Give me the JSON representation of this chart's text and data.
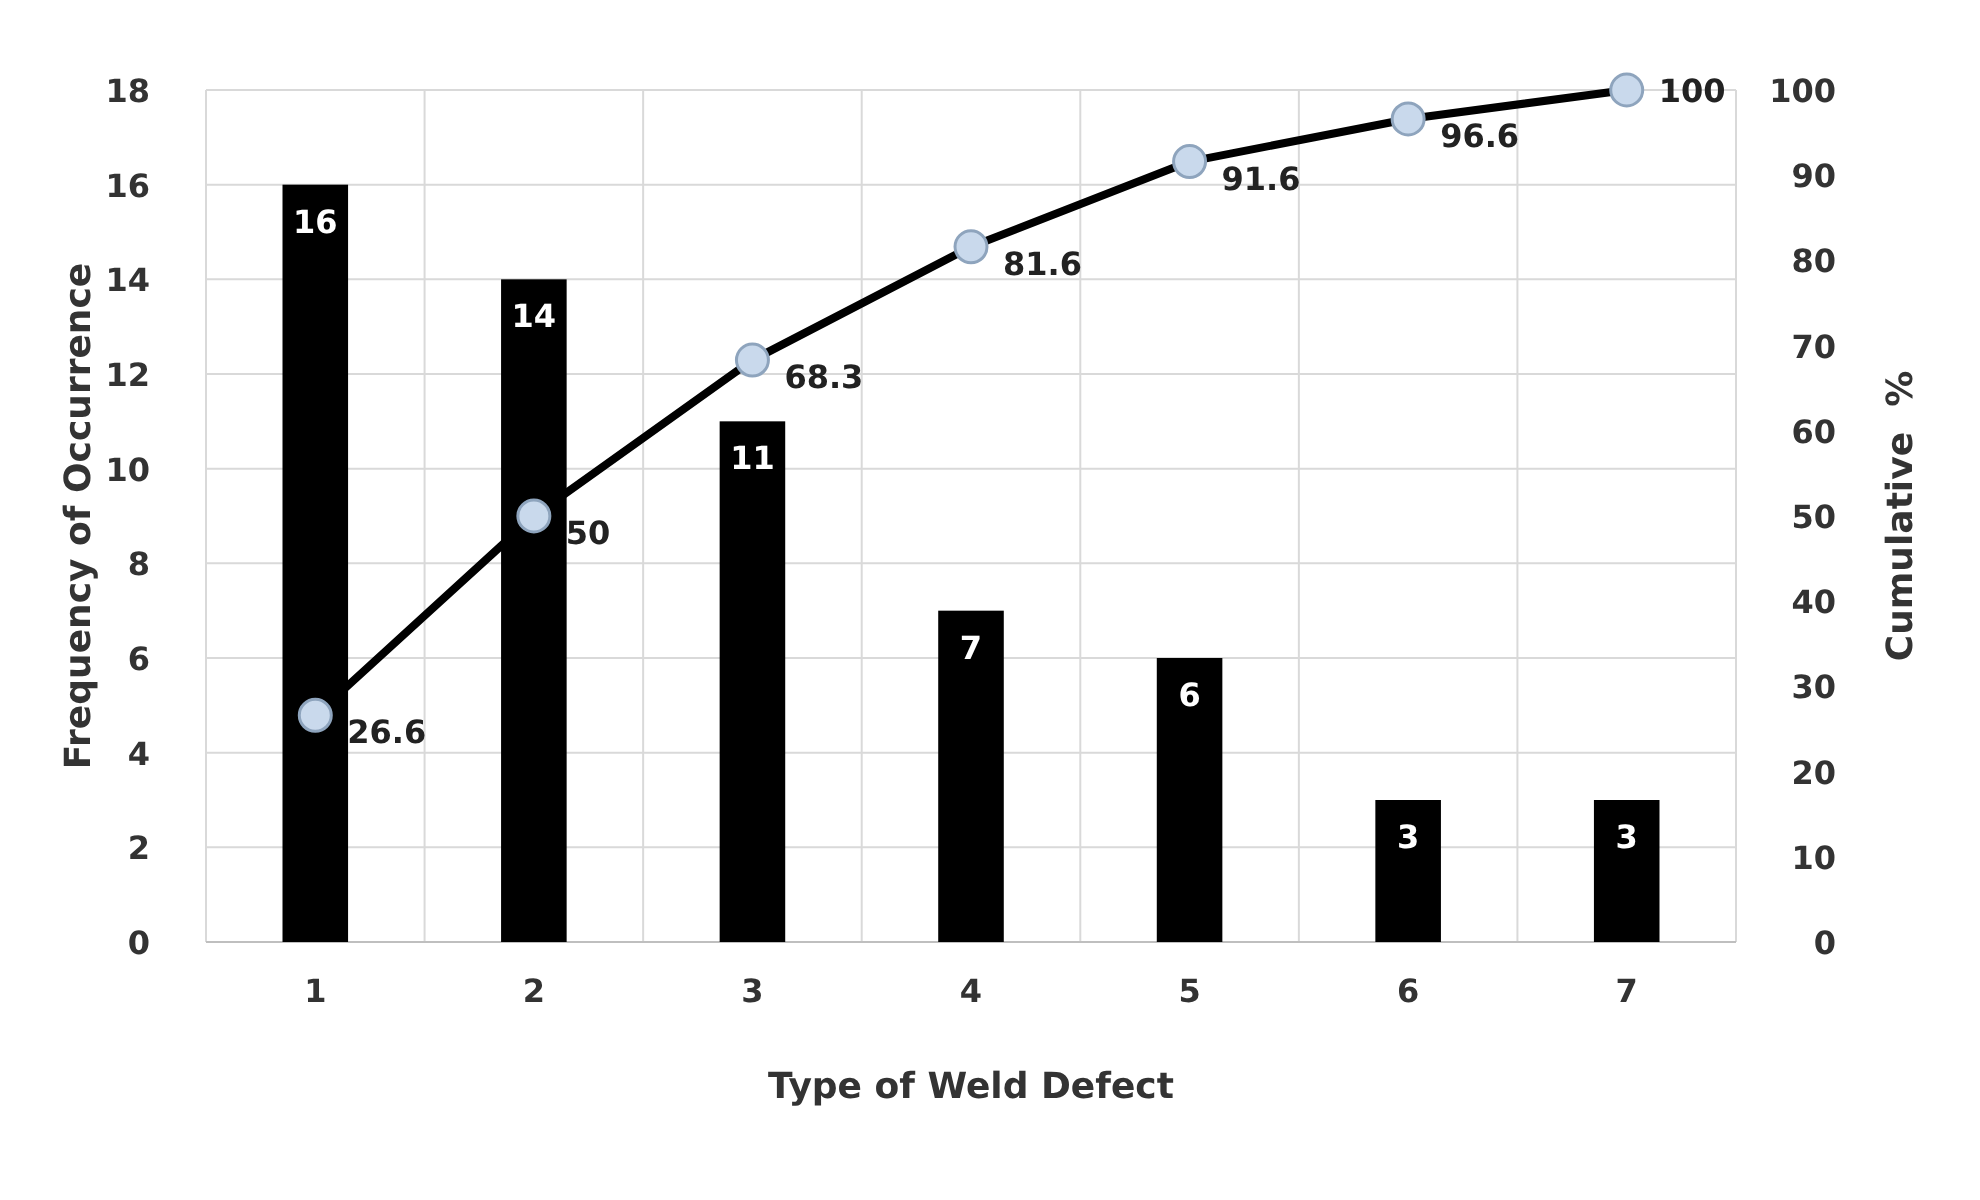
{
  "chart_data": {
    "type": "bar",
    "xlabel": "Type of Weld Defect",
    "ylabel": "Frequency of Occurrence",
    "y2label": "Cumulative  %",
    "categories": [
      "1",
      "2",
      "3",
      "4",
      "5",
      "6",
      "7"
    ],
    "series": [
      {
        "color": "#000000",
        "values": [
          16,
          14,
          11,
          7,
          6,
          3,
          3
        ]
      },
      {
        "type": "line",
        "axis": "y2",
        "color": "#000000",
        "values": [
          26.6,
          50,
          68.3,
          81.6,
          91.6,
          96.6,
          100
        ]
      }
    ],
    "ylim": [
      0,
      18
    ],
    "yticks": [
      0,
      2,
      4,
      6,
      8,
      10,
      12,
      14,
      16,
      18
    ],
    "y2lim": [
      0,
      100
    ],
    "y2ticks": [
      0,
      10,
      20,
      30,
      40,
      50,
      60,
      70,
      80,
      90,
      100
    ],
    "grid": true,
    "data_labels": true,
    "marker": "circle",
    "line_style": "solid"
  }
}
